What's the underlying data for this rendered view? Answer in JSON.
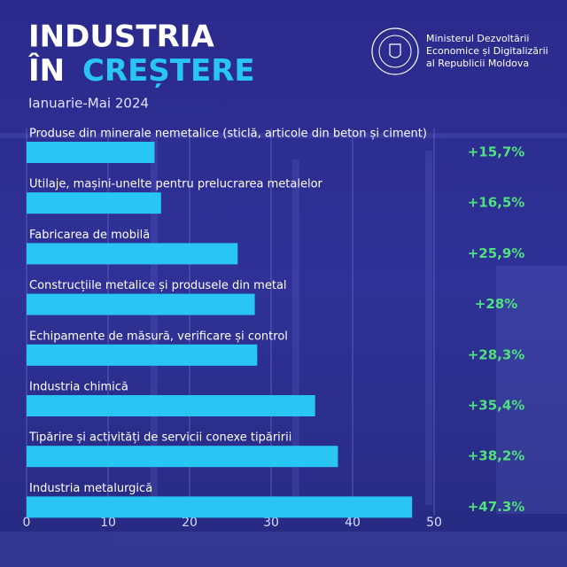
{
  "header": {
    "title_line1": "INDUSTRIA",
    "title_line2a": "ÎN",
    "title_line2b": "CREȘTERE",
    "subtitle": "Ianuarie-Mai 2024",
    "ministry": [
      "Ministerul Dezvoltării",
      "Economice și Digitalizării",
      "al Republicii Moldova"
    ]
  },
  "chart_data": {
    "type": "bar",
    "orientation": "horizontal",
    "categories": [
      "Produse din minerale nemetalice (sticlă, articole din beton și ciment)",
      "Utilaje, mașini-unelte pentru prelucrarea metalelor",
      "Fabricarea de mobilă",
      "Construcțiile metalice și produsele din metal",
      "Echipamente de măsură, verificare și control",
      "Industria chimică",
      "Tipărire și activități de servicii conexe tipăririi",
      "Industria metalurgică"
    ],
    "values": [
      15.7,
      16.5,
      25.9,
      28,
      28.3,
      35.4,
      38.2,
      47.3
    ],
    "value_labels": [
      "+15,7%",
      "+16,5%",
      "+25,9%",
      "+28%",
      "+28,3%",
      "+35,4%",
      "+38,2%",
      "+47.3%"
    ],
    "color": "#29c6f4",
    "xlim": [
      0,
      50
    ],
    "xticks": [
      0,
      10,
      20,
      30,
      40,
      50
    ],
    "grid": true
  }
}
